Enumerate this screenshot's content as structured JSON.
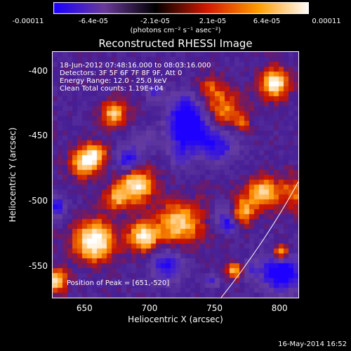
{
  "colorbar": {
    "ticks": [
      "-0.00011",
      "-6.4e-05",
      "-2.1e-05",
      "2.1e-05",
      "6.4e-05",
      "0.00011"
    ],
    "units": "(photons cm⁻² s⁻¹ asec⁻²)",
    "colors": [
      "#1a00ff",
      "#6a3a9a",
      "#000000",
      "#d01a00",
      "#ff9a00",
      "#ffffff"
    ]
  },
  "title": "Reconstructed RHESSI Image",
  "annotations": {
    "time": "18-Jun-2012 07:48:16.000 to 08:03:16.000",
    "detectors": "Detectors: 3F 5F 6F 7F 8F 9F, Att 0",
    "energy": "Energy Range: 12.0 - 25.0 keV",
    "clean": "Clean     Total counts: 1.19E+04",
    "peak": "Position of Peak = [651,-520]"
  },
  "axes": {
    "xlabel": "Heliocentric X (arcsec)",
    "ylabel": "Heliocentric Y (arcsec)",
    "xticks": [
      "650",
      "700",
      "750",
      "800"
    ],
    "yticks": [
      "-400",
      "-450",
      "-500",
      "-550"
    ],
    "xrange": [
      625,
      815
    ],
    "yrange": [
      -575,
      -385
    ]
  },
  "timestamp": "16-May-2014 16:52"
}
